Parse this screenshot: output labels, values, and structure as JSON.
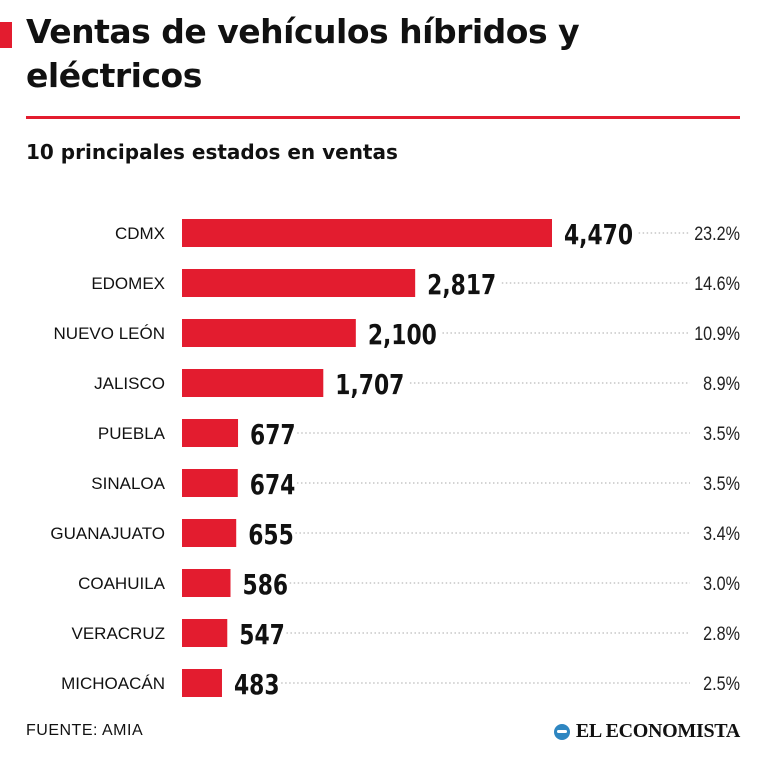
{
  "header": {
    "title": "Ventas de vehículos híbridos y eléctricos",
    "subtitle": "10 principales estados en ventas"
  },
  "colors": {
    "accent": "#e31c2f",
    "text": "#111111",
    "leader": "#aaaaaa"
  },
  "chart_data": {
    "type": "bar",
    "orientation": "horizontal",
    "title": "Ventas de vehículos híbridos y eléctricos",
    "subtitle": "10 principales estados en ventas",
    "categories": [
      "CDMX",
      "EDOMEX",
      "NUEVO LEÓN",
      "JALISCO",
      "PUEBLA",
      "SINALOA",
      "GUANAJUATO",
      "COAHUILA",
      "VERACRUZ",
      "MICHOACÁN"
    ],
    "values": [
      4470,
      2817,
      2100,
      1707,
      677,
      674,
      655,
      586,
      547,
      483
    ],
    "value_labels": [
      "4,470",
      "2,817",
      "2,100",
      "1,707",
      "677",
      "674",
      "655",
      "586",
      "547",
      "483"
    ],
    "shares": [
      "23.2%",
      "14.6%",
      "10.9%",
      "8.9%",
      "3.5%",
      "3.5%",
      "3.4%",
      "3.0%",
      "2.8%",
      "2.5%"
    ],
    "xlim": [
      0,
      4470
    ],
    "grid": false,
    "legend": "none"
  },
  "footer": {
    "source": "FUENTE: AMIA",
    "brand": "EL ECONOMISTA",
    "brand_icon": "el-economista-logo-icon"
  }
}
